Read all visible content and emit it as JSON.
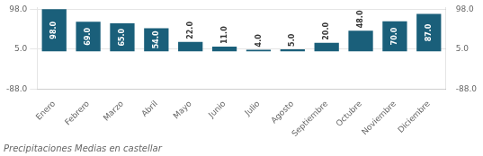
{
  "chart_data": {
    "type": "bar",
    "title": "Precipitaciones Medias en castellar",
    "categories": [
      "Enero",
      "Febrero",
      "Marzo",
      "Abril",
      "Mayo",
      "Junio",
      "Julio",
      "Agosto",
      "Septiembre",
      "Octubre",
      "Noviembre",
      "Diciembre"
    ],
    "values": [
      98.0,
      69.0,
      65.0,
      54.0,
      22.0,
      11.0,
      4.0,
      5.0,
      20.0,
      48.0,
      70.0,
      87.0
    ],
    "value_labels": [
      "98.0",
      "69.0",
      "65.0",
      "54.0",
      "22.0",
      "11.0",
      "4.0",
      "5.0",
      "20.0",
      "48.0",
      "70.0",
      "87.0"
    ],
    "data_labels": true,
    "color": "#1a5f7a",
    "ylim": [
      -88.0,
      101.92
    ],
    "yticks": [
      {
        "value": -88.0,
        "label": "-88.0"
      },
      {
        "value": 5.0,
        "label": "5.0"
      },
      {
        "value": 98.0,
        "label": "98.0"
      }
    ],
    "y2lim": [
      -88.0,
      101.92
    ],
    "y2ticks": [
      {
        "value": -88.0,
        "label": "-88.0"
      },
      {
        "value": 5.0,
        "label": "5.0"
      },
      {
        "value": 98.0,
        "label": "98.0"
      }
    ],
    "grid": true
  }
}
